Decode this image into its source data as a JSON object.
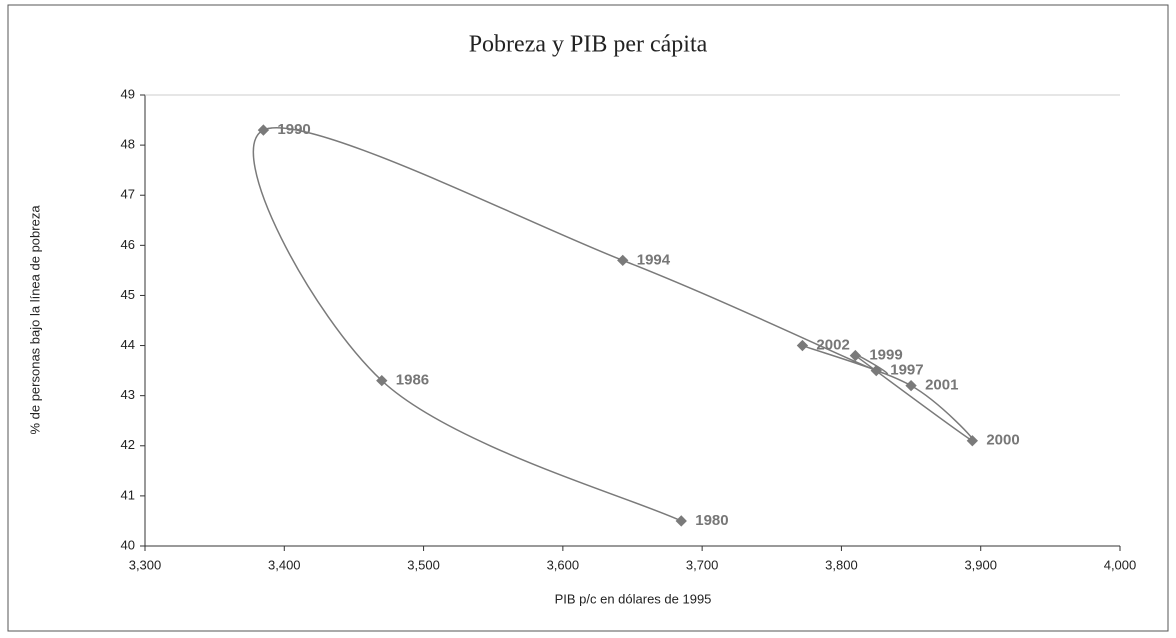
{
  "chart_data": {
    "type": "scatter",
    "title": "Pobreza y PIB per cápita",
    "xlabel": "PIB p/c en dólares de 1995",
    "ylabel": "% de personas bajo la línea de pobreza",
    "labels": [
      "1980",
      "1986",
      "1990",
      "1994",
      "1997",
      "1999",
      "2000",
      "2001",
      "2002"
    ],
    "x": [
      3685,
      3470,
      3385,
      3643,
      3825,
      3810,
      3894,
      3850,
      3772
    ],
    "values": [
      40.5,
      43.3,
      48.3,
      45.7,
      43.5,
      43.8,
      42.1,
      43.2,
      44.0
    ],
    "color": "#7a7a7a",
    "connected": true,
    "xlim": [
      3300,
      4000
    ],
    "xticks": [
      {
        "value": 3300,
        "label": "3,300"
      },
      {
        "value": 3400,
        "label": "3,400"
      },
      {
        "value": 3500,
        "label": "3,500"
      },
      {
        "value": 3600,
        "label": "3,600"
      },
      {
        "value": 3700,
        "label": "3,700"
      },
      {
        "value": 3800,
        "label": "3,800"
      },
      {
        "value": 3900,
        "label": "3,900"
      },
      {
        "value": 4000,
        "label": "4,000"
      }
    ],
    "ylim": [
      40,
      49
    ],
    "yticks": [
      40,
      41,
      42,
      43,
      44,
      45,
      46,
      47,
      48,
      49
    ],
    "grid": false
  }
}
